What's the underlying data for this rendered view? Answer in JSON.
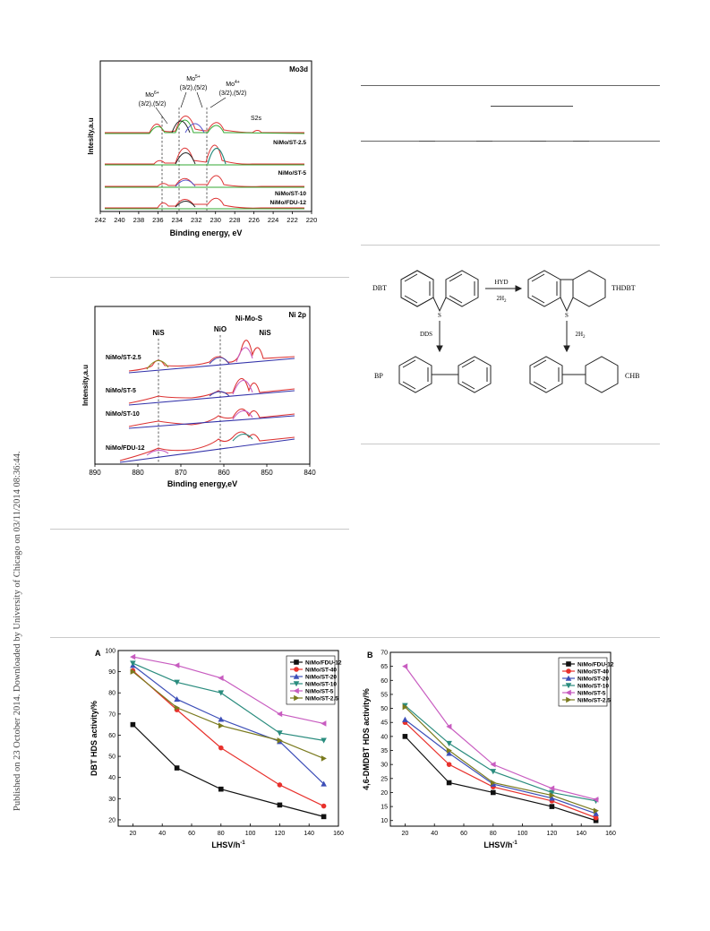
{
  "side_note": "Published on 23 October 2014. Downloaded by University of Chicago on 03/11/2014 08:36:44.",
  "fig_mo3d": {
    "panel_label": "Mo3d",
    "xlabel": "Binding energy, eV",
    "ylabel": "Intesity,a.u",
    "xticks": [
      242,
      240,
      238,
      236,
      234,
      232,
      230,
      228,
      226,
      224,
      222,
      220
    ],
    "peak_labels": [
      {
        "ion": "Mo",
        "sup": "6+",
        "sub": "(3/2),(5/2)"
      },
      {
        "ion": "Mo",
        "sup": "5+",
        "sub": "(3/2),(5/2)"
      },
      {
        "ion": "Mo",
        "sup": "4+",
        "sub": "(3/2),(5/2)"
      }
    ],
    "s2s": "S2s",
    "curves": [
      "NiMo/ST-2.5",
      "NiMo/ST-5",
      "NiMo/ST-10",
      "NiMo/FDU-12"
    ]
  },
  "fig_ni2p": {
    "panel_label": "Ni 2p",
    "xlabel": "Binding energy,eV",
    "ylabel": "Intensity,a.u",
    "xticks": [
      890,
      880,
      870,
      860,
      850,
      840
    ],
    "peaks": [
      "NiS",
      "NiO",
      "Ni-Mo-S",
      "NiS"
    ],
    "curves": [
      "NiMo/ST-2.5",
      "NiMo/ST-5",
      "NiMo/ST-10",
      "NiMo/FDU-12"
    ]
  },
  "scheme": {
    "dbt": "DBT",
    "thdbt": "THDBT",
    "bp": "BP",
    "chb": "CHB",
    "hyd": "HYD",
    "h2_top": "2H",
    "h2_top_sub": "2",
    "dds": "DDS",
    "h2_right": "2H",
    "h2_right_sub": "2",
    "s_left": "S",
    "s_right": "S"
  },
  "chart_data": [
    {
      "type": "line",
      "panel": "A",
      "xlabel": "LHSV/h",
      "xlabel_sup": "-1",
      "ylabel": "DBT HDS activity/%",
      "xlim": [
        10,
        160
      ],
      "ylim": [
        17,
        100
      ],
      "xticks": [
        20,
        40,
        60,
        80,
        100,
        120,
        140,
        160
      ],
      "yticks": [
        20,
        30,
        40,
        50,
        60,
        70,
        80,
        90,
        100
      ],
      "x": [
        20,
        50,
        80,
        120,
        150
      ],
      "series": [
        {
          "name": "NiMo/FDU-12",
          "color": "#111111",
          "marker": "square",
          "values": [
            65,
            44.5,
            34.5,
            27,
            21.5
          ]
        },
        {
          "name": "NiMo/ST-40",
          "color": "#e8312c",
          "marker": "circle",
          "values": [
            90.5,
            72,
            54,
            36.5,
            26.5
          ]
        },
        {
          "name": "NiMo/ST-20",
          "color": "#3d4fb8",
          "marker": "triangle-up",
          "values": [
            93,
            77,
            67.5,
            57,
            37
          ]
        },
        {
          "name": "NiMo/ST-10",
          "color": "#2a8c7e",
          "marker": "triangle-down",
          "values": [
            94,
            85,
            80,
            61,
            57.5
          ]
        },
        {
          "name": "NiMo/ST-5",
          "color": "#c85cc0",
          "marker": "triangle-left",
          "values": [
            97,
            93,
            87,
            70,
            65.5
          ]
        },
        {
          "name": "NiMo/ST-2.5",
          "color": "#7a7a1e",
          "marker": "triangle-right",
          "values": [
            90,
            73,
            64.5,
            57.5,
            49
          ]
        }
      ],
      "legend_position": "top-right"
    },
    {
      "type": "line",
      "panel": "B",
      "xlabel": "LHSV/h",
      "xlabel_sup": "-1",
      "ylabel": "4,6-DMDBT HDS activity/%",
      "xlim": [
        10,
        160
      ],
      "ylim": [
        8,
        70
      ],
      "xticks": [
        20,
        40,
        60,
        80,
        100,
        120,
        140,
        160
      ],
      "yticks": [
        10,
        15,
        20,
        25,
        30,
        35,
        40,
        45,
        50,
        55,
        60,
        65,
        70
      ],
      "x": [
        20,
        50,
        80,
        120,
        150
      ],
      "series": [
        {
          "name": "NiMo/FDU-12",
          "color": "#111111",
          "marker": "square",
          "values": [
            40,
            23.5,
            20,
            15,
            10
          ]
        },
        {
          "name": "NiMo/ST-40",
          "color": "#e8312c",
          "marker": "circle",
          "values": [
            45,
            30,
            22,
            17,
            11
          ]
        },
        {
          "name": "NiMo/ST-20",
          "color": "#3d4fb8",
          "marker": "triangle-up",
          "values": [
            46,
            34,
            23,
            18,
            12.5
          ]
        },
        {
          "name": "NiMo/ST-10",
          "color": "#2a8c7e",
          "marker": "triangle-down",
          "values": [
            51,
            37.5,
            27.5,
            20,
            17
          ]
        },
        {
          "name": "NiMo/ST-5",
          "color": "#c85cc0",
          "marker": "triangle-left",
          "values": [
            65,
            43.5,
            30,
            21.5,
            17.5
          ]
        },
        {
          "name": "NiMo/ST-2.5",
          "color": "#7a7a1e",
          "marker": "triangle-right",
          "values": [
            50.5,
            35,
            23.5,
            19,
            13.5
          ]
        }
      ],
      "legend_position": "top-right"
    }
  ]
}
